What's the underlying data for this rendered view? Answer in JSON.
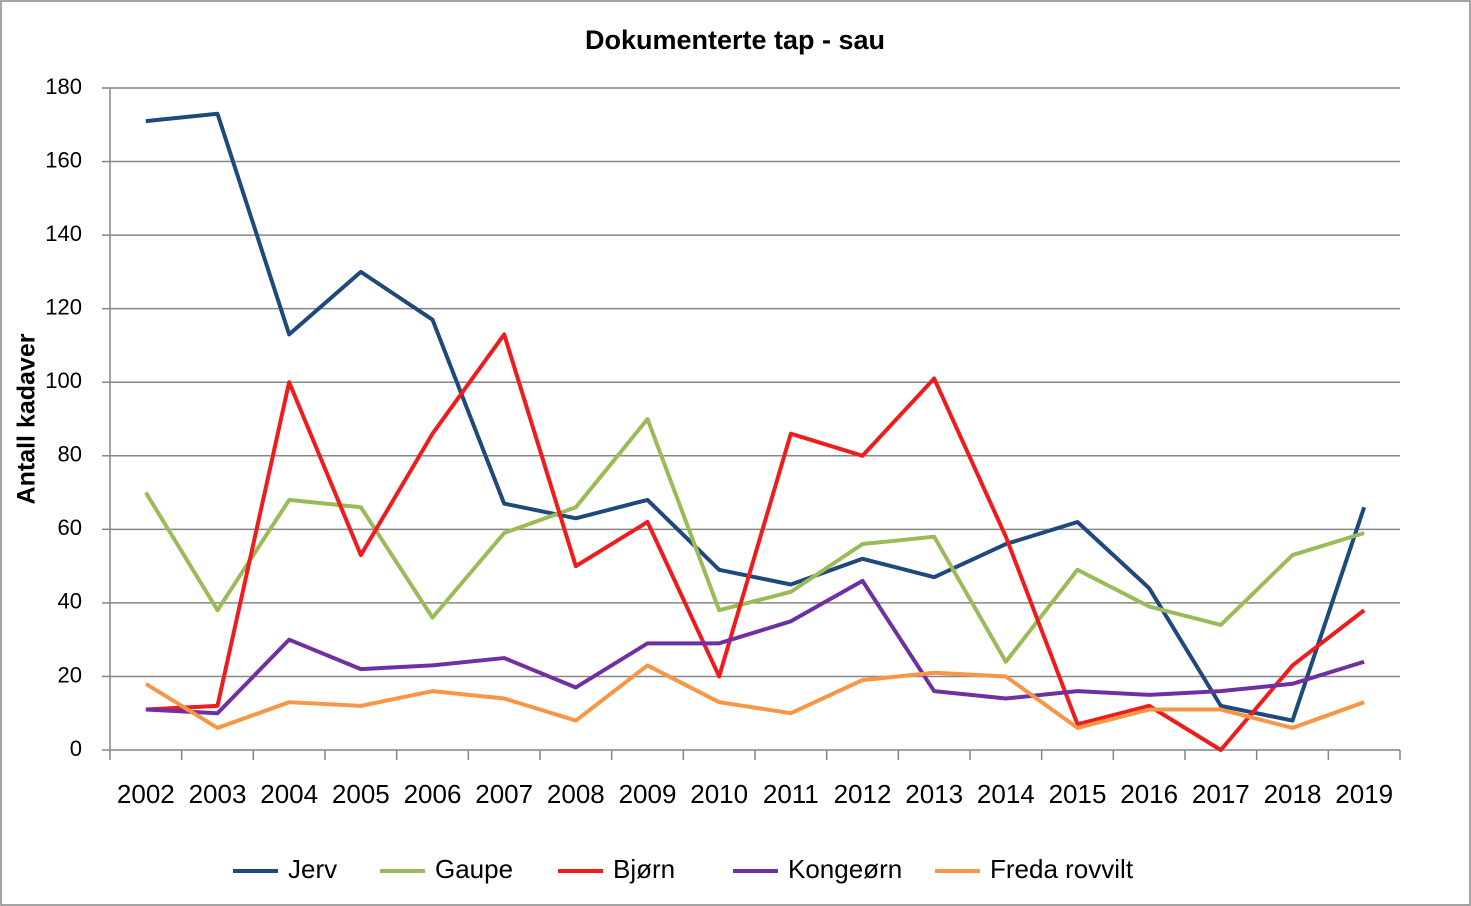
{
  "chart_data": {
    "type": "line",
    "title": "Dokumenterte tap - sau",
    "y_label": "Antall kadaver",
    "categories": [
      "2002",
      "2003",
      "2004",
      "2005",
      "2006",
      "2007",
      "2008",
      "2009",
      "2010",
      "2011",
      "2012",
      "2013",
      "2014",
      "2015",
      "2016",
      "2017",
      "2018",
      "2019"
    ],
    "series": [
      {
        "name": "Jerv",
        "color": "#1f497d",
        "values": [
          171,
          173,
          113,
          130,
          117,
          67,
          63,
          68,
          49,
          45,
          52,
          47,
          56,
          62,
          44,
          12,
          8,
          66
        ]
      },
      {
        "name": "Gaupe",
        "color": "#9bbb59",
        "values": [
          70,
          38,
          68,
          66,
          36,
          59,
          66,
          90,
          38,
          43,
          56,
          58,
          24,
          49,
          39,
          34,
          53,
          59
        ]
      },
      {
        "name": "Bjørn",
        "color": "#ee1c1c",
        "values": [
          11,
          12,
          100,
          53,
          86,
          113,
          50,
          62,
          20,
          86,
          80,
          101,
          58,
          7,
          12,
          0,
          23,
          38
        ]
      },
      {
        "name": "Kongeørn",
        "color": "#7030a0",
        "values": [
          11,
          10,
          30,
          22,
          23,
          25,
          17,
          29,
          29,
          35,
          46,
          16,
          14,
          16,
          15,
          16,
          18,
          24
        ]
      },
      {
        "name": "Freda rovvilt",
        "color": "#f79646",
        "values": [
          18,
          6,
          13,
          12,
          16,
          14,
          8,
          23,
          13,
          10,
          19,
          21,
          20,
          6,
          11,
          11,
          6,
          13
        ]
      }
    ],
    "ylim": [
      0,
      180
    ],
    "yticks": [
      0,
      20,
      40,
      60,
      80,
      100,
      120,
      140,
      160,
      180
    ],
    "grid": true,
    "legend": "bottom"
  }
}
